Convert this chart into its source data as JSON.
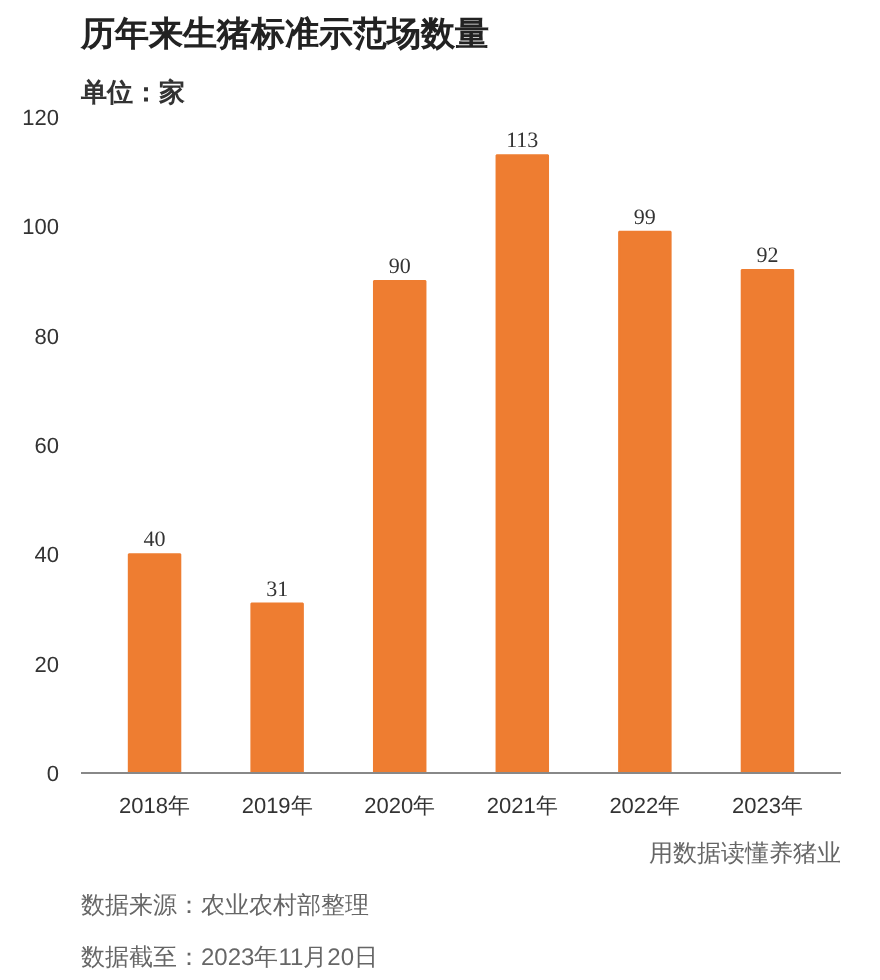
{
  "chart_data": {
    "type": "bar",
    "title": "历年来生猪标准示范场数量",
    "subtitle": "单位：家",
    "categories": [
      "2018年",
      "2019年",
      "2020年",
      "2021年",
      "2022年",
      "2023年"
    ],
    "values": [
      40,
      31,
      90,
      113,
      99,
      92
    ],
    "color": "#ee7d31",
    "ylim": [
      0,
      120
    ],
    "yticks": [
      0,
      20,
      40,
      60,
      80,
      100,
      120
    ],
    "grid": false,
    "data_labels": true,
    "annotations": [
      "数据截至：2023年11月20日",
      "数据来源：农业农村部整理",
      "用数据读懂养猪业"
    ]
  }
}
